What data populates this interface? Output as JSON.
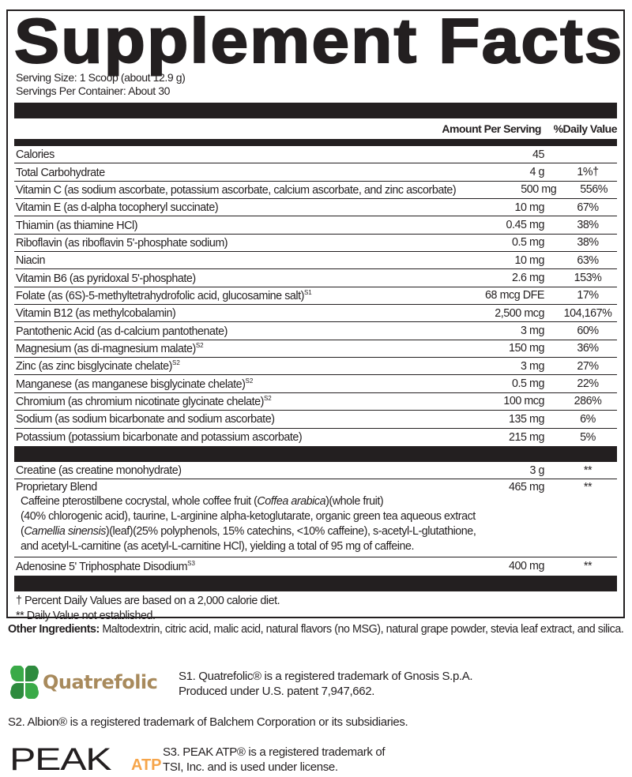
{
  "title": "Supplement Facts",
  "serving_size": "Serving Size: 1 Scoop (about 12.9 g)",
  "servings_per_container": "Servings Per Container: About 30",
  "header": {
    "amount": "Amount Per Serving",
    "dv": "%Daily Value"
  },
  "rows": [
    {
      "name": "Calories",
      "sup": "",
      "amount": "45",
      "dv": ""
    },
    {
      "name": "Total Carbohydrate",
      "sup": "",
      "amount": "4 g",
      "dv": "1%†"
    },
    {
      "name": "Vitamin C (as sodium ascorbate, potassium ascorbate, calcium ascorbate, and zinc ascorbate)",
      "sup": "",
      "amount": "500 mg",
      "dv": "556%"
    },
    {
      "name": "Vitamin E (as d-alpha tocopheryl succinate)",
      "sup": "",
      "amount": "10 mg",
      "dv": "67%"
    },
    {
      "name": "Thiamin (as thiamine HCl)",
      "sup": "",
      "amount": "0.45 mg",
      "dv": "38%"
    },
    {
      "name": "Riboflavin (as riboflavin 5'-phosphate sodium)",
      "sup": "",
      "amount": "0.5 mg",
      "dv": "38%"
    },
    {
      "name": "Niacin",
      "sup": "",
      "amount": "10 mg",
      "dv": "63%"
    },
    {
      "name": "Vitamin B6 (as pyridoxal 5'-phosphate)",
      "sup": "",
      "amount": "2.6 mg",
      "dv": "153%"
    },
    {
      "name": "Folate (as (6S)-5-methyltetrahydrofolic acid, glucosamine salt)",
      "sup": "S1",
      "amount": "68 mcg DFE",
      "dv": "17%"
    },
    {
      "name": "Vitamin B12 (as methylcobalamin)",
      "sup": "",
      "amount": "2,500 mcg",
      "dv": "104,167%"
    },
    {
      "name": "Pantothenic Acid (as d-calcium pantothenate)",
      "sup": "",
      "amount": "3 mg",
      "dv": "60%"
    },
    {
      "name": "Magnesium (as di-magnesium malate)",
      "sup": "S2",
      "amount": "150 mg",
      "dv": "36%"
    },
    {
      "name": "Zinc (as zinc bisglycinate chelate)",
      "sup": "S2",
      "amount": "3 mg",
      "dv": "27%"
    },
    {
      "name": "Manganese (as manganese bisglycinate chelate)",
      "sup": "S2",
      "amount": "0.5 mg",
      "dv": "22%"
    },
    {
      "name": "Chromium (as chromium nicotinate glycinate chelate)",
      "sup": "S2",
      "amount": "100 mcg",
      "dv": "286%"
    },
    {
      "name": "Sodium (as sodium bicarbonate and sodium ascorbate)",
      "sup": "",
      "amount": "135 mg",
      "dv": "6%"
    },
    {
      "name": "Potassium (potassium bicarbonate and potassium ascorbate)",
      "sup": "",
      "amount": "215 mg",
      "dv": "5%"
    }
  ],
  "creatine": {
    "name": "Creatine (as creatine monohydrate)",
    "amount": "3 g",
    "dv": "**"
  },
  "blend": {
    "name": "Proprietary Blend",
    "amount": "465 mg",
    "dv": "**",
    "lines": [
      [
        {
          "t": "Caffeine pterostilbene cocrystal, whole coffee fruit ("
        },
        {
          "t": "Coffea arabica",
          "i": true
        },
        {
          "t": ")(whole fruit)"
        }
      ],
      [
        {
          "t": "(40% chlorogenic acid), taurine, L-arginine alpha-ketoglutarate, organic green tea aqueous extract"
        }
      ],
      [
        {
          "t": "("
        },
        {
          "t": "Camellia sinensis",
          "i": true
        },
        {
          "t": ")(leaf)(25% polyphenols, 15% catechins, <10% caffeine), s-acetyl-L-glutathione,"
        }
      ],
      [
        {
          "t": "and acetyl-L-carnitine (as acetyl-L-carnitine HCl), yielding a total of 95 mg of caffeine."
        }
      ]
    ]
  },
  "atp": {
    "name": "Adenosine 5' Triphosphate Disodium",
    "sup": "S3",
    "amount": "400 mg",
    "dv": "**"
  },
  "footnotes": [
    "† Percent Daily Values are based on a 2,000 calorie diet.",
    "** Daily Value not established."
  ],
  "other_ingredients": {
    "label": "Other Ingredients:",
    "text": " Maltodextrin, citric acid, malic acid, natural flavors (no MSG), natural grape powder, stevia leaf extract, and silica."
  },
  "notes": {
    "s1_logo": "Quatrefolic",
    "s1_line1": "S1. Quatrefolic® is a registered trademark of Gnosis S.p.A.",
    "s1_line2": "Produced under U.S. patent 7,947,662.",
    "s2": "S2. Albion® is a registered trademark of Balchem Corporation or its subsidiaries.",
    "s3_logo_peak": "PEAK",
    "s3_logo_atp": "ATP",
    "s3_line1": "S3. PEAK ATP® is a registered trademark of",
    "s3_line2": "TSI, Inc. and is used under license."
  },
  "colors": {
    "ink": "#231f20",
    "clover": "#3aaa48",
    "quatrefolic_text": "#a88a5c",
    "atp_orange": "#f6a54a"
  }
}
